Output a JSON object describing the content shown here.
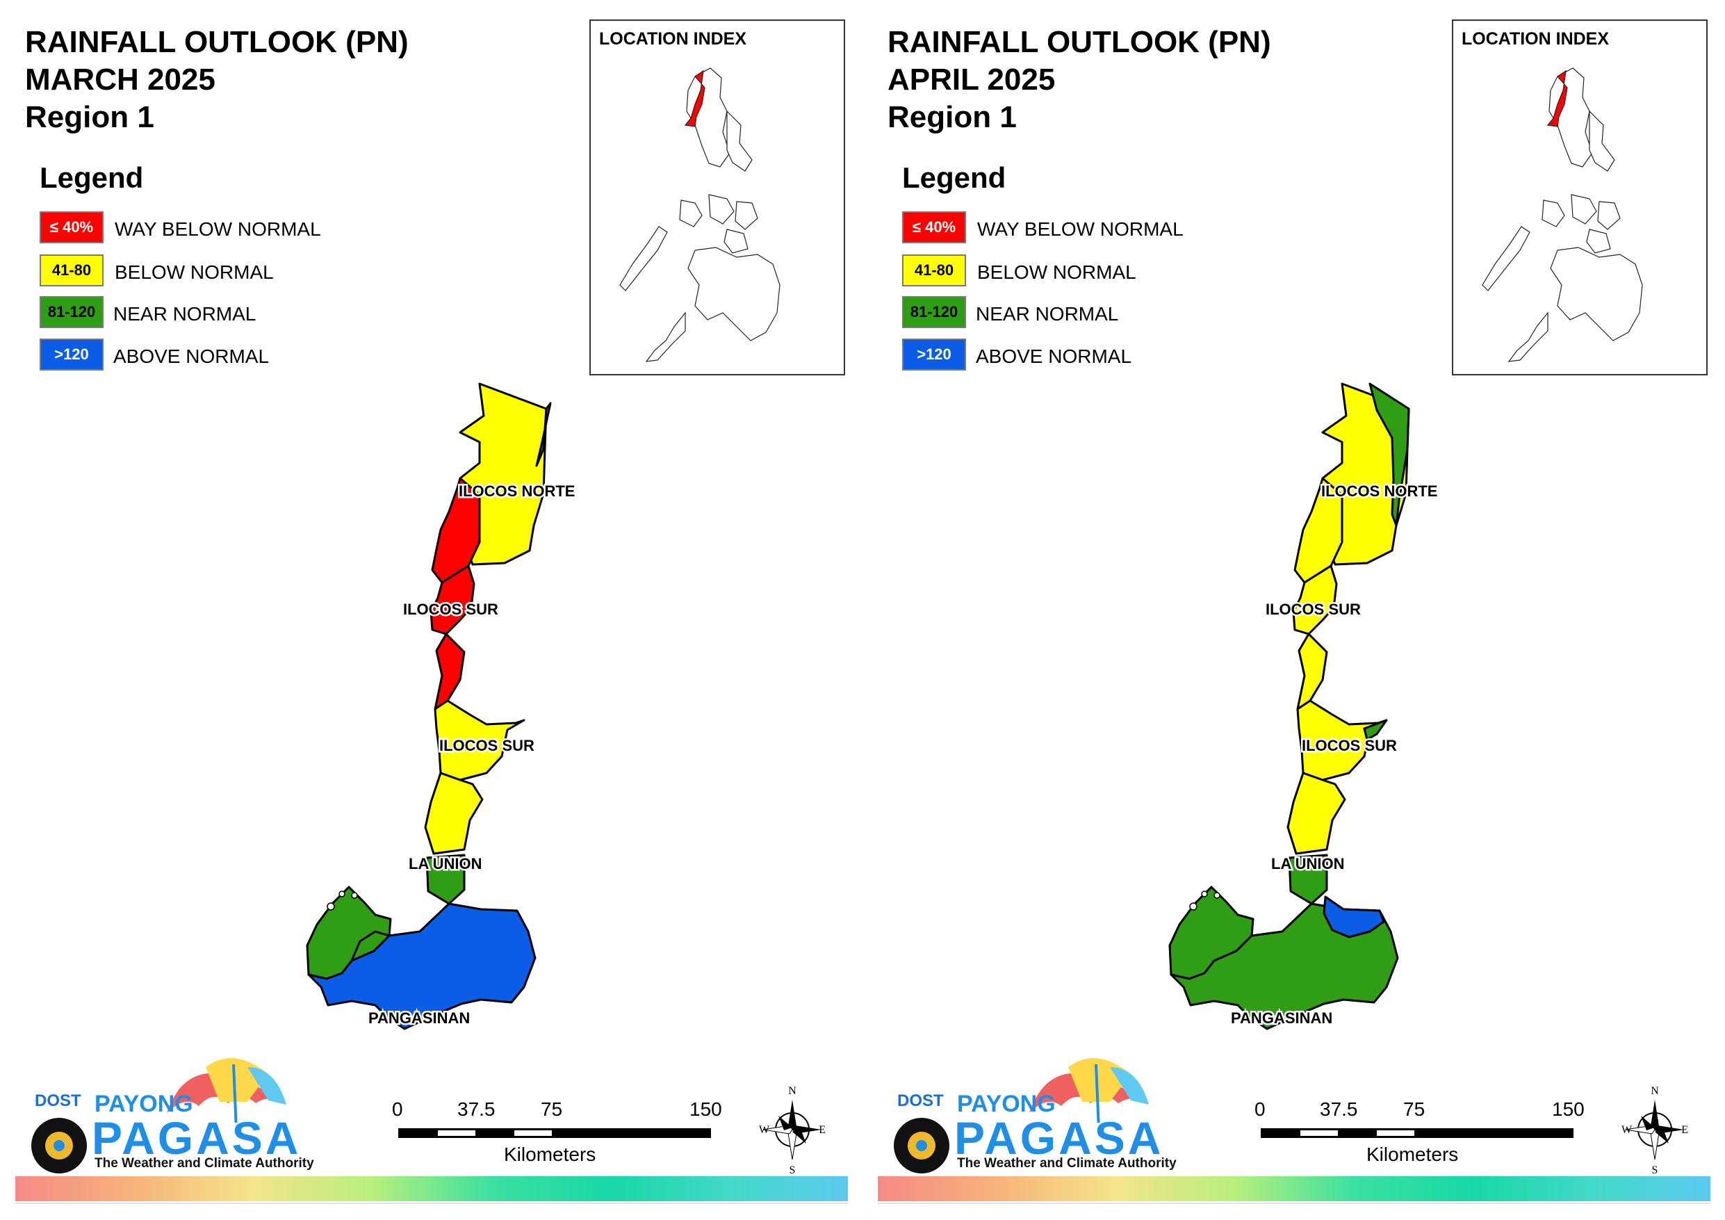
{
  "panels": [
    {
      "title_line1": "RAINFALL OUTLOOK (PN)",
      "title_line2": "MARCH 2025",
      "title_line3": "Region 1",
      "colors": {
        "north_main": "#ffff00",
        "north_west": "#ff0000",
        "north_tip": "#2f9e14",
        "ilocos_sur_north": "#ff0000",
        "ilocos_sur_south": "#ffff00",
        "la_union_north": "#ffff00",
        "la_union_south": "#2f9e14",
        "pang_west": "#2f9e14",
        "pang_main": "#0b5ce6"
      }
    },
    {
      "title_line1": "RAINFALL OUTLOOK (PN)",
      "title_line2": "APRIL 2025",
      "title_line3": "Region 1",
      "colors": {
        "north_main": "#ffff00",
        "north_west": "#ffff00",
        "north_tip": "#2f9e14",
        "ilocos_sur_north": "#ffff00",
        "ilocos_sur_south": "#ffff00",
        "la_union_north": "#ffff00",
        "la_union_south": "#2f9e14",
        "pang_west": "#2f9e14",
        "pang_main": "#2f9e14"
      }
    }
  ],
  "legend": {
    "title": "Legend",
    "items": [
      {
        "range": "≤ 40%",
        "label": "WAY BELOW NORMAL",
        "color": "#ff0000",
        "text_color": "#ffffff"
      },
      {
        "range": "41-80",
        "label": "BELOW NORMAL",
        "color": "#ffff00",
        "text_color": "#000000"
      },
      {
        "range": "81-120",
        "label": "NEAR NORMAL",
        "color": "#2f9e14",
        "text_color": "#000000"
      },
      {
        "range": ">120",
        "label": "ABOVE NORMAL",
        "color": "#0b5ce6",
        "text_color": "#ffffff"
      }
    ]
  },
  "location_index": {
    "title": "LOCATION INDEX",
    "highlight_color": "#ff0000"
  },
  "provinces": {
    "ilocos_norte": "ILOCOS NORTE",
    "ilocos_sur_1": "ILOCOS SUR",
    "ilocos_sur_2": "ILOCOS SUR",
    "la_union": "LA UNION",
    "pangasinan": "PANGASINAN"
  },
  "scale": {
    "ticks": [
      "0",
      "37.5",
      "75",
      "150"
    ],
    "unit": "Kilometers"
  },
  "compass": {
    "n": "N",
    "s": "S",
    "e": "E",
    "w": "W"
  },
  "logo": {
    "dost": "DOST",
    "payong": "PAYONG",
    "pagasa": "PAGASA",
    "tagline": "The Weather and Climate Authority"
  }
}
